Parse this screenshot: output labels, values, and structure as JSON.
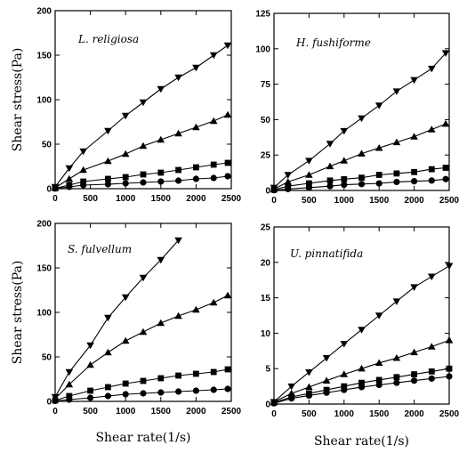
{
  "chart_data": [
    {
      "type": "line",
      "title": "L. religiosa",
      "xlabel": "",
      "ylabel": "Shear stress(Pa)",
      "xlim": [
        0,
        2500
      ],
      "ylim": [
        0,
        200
      ],
      "xticks": [
        0,
        500,
        1000,
        1500,
        2000,
        2500
      ],
      "yticks": [
        0,
        50,
        100,
        150,
        200
      ],
      "series": [
        {
          "marker": "triangle-down",
          "x": [
            0,
            200,
            400,
            750,
            1000,
            1250,
            1500,
            1750,
            2000,
            2250,
            2450
          ],
          "y": [
            2,
            23,
            42,
            65,
            82,
            97,
            112,
            125,
            136,
            150,
            161
          ]
        },
        {
          "marker": "triangle-up",
          "x": [
            0,
            200,
            400,
            750,
            1000,
            1250,
            1500,
            1750,
            2000,
            2250,
            2450
          ],
          "y": [
            1,
            11,
            21,
            31,
            39,
            48,
            55,
            62,
            69,
            76,
            83
          ]
        },
        {
          "marker": "square",
          "x": [
            0,
            200,
            400,
            750,
            1000,
            1250,
            1500,
            1750,
            2000,
            2250,
            2450
          ],
          "y": [
            0.5,
            4,
            8,
            11,
            13,
            16,
            18,
            21,
            24,
            27,
            29
          ]
        },
        {
          "marker": "circle",
          "x": [
            0,
            200,
            400,
            750,
            1000,
            1250,
            1500,
            1750,
            2000,
            2250,
            2450
          ],
          "y": [
            0.2,
            2,
            4,
            5,
            6,
            7,
            8,
            9,
            11,
            12,
            14
          ]
        }
      ]
    },
    {
      "type": "line",
      "title": "H. fushiforme",
      "xlabel": "",
      "ylabel": "",
      "xlim": [
        0,
        2500
      ],
      "ylim": [
        0,
        125
      ],
      "xticks": [
        0,
        500,
        1000,
        1500,
        2000,
        2500
      ],
      "yticks": [
        0,
        25,
        50,
        75,
        100,
        125
      ],
      "series": [
        {
          "marker": "triangle-down",
          "x": [
            0,
            200,
            500,
            800,
            1000,
            1250,
            1500,
            1750,
            2000,
            2250,
            2450
          ],
          "y": [
            2,
            11,
            21,
            33,
            42,
            51,
            60,
            70,
            78,
            86,
            97
          ]
        },
        {
          "marker": "triangle-up",
          "x": [
            0,
            200,
            500,
            800,
            1000,
            1250,
            1500,
            1750,
            2000,
            2250,
            2450
          ],
          "y": [
            1,
            6,
            11,
            17,
            21,
            26,
            30,
            34,
            38,
            43,
            47
          ]
        },
        {
          "marker": "square",
          "x": [
            0,
            200,
            500,
            800,
            1000,
            1250,
            1500,
            1750,
            2000,
            2250,
            2450
          ],
          "y": [
            0.5,
            3,
            5,
            7,
            8,
            9,
            11,
            12,
            13,
            15,
            16
          ]
        },
        {
          "marker": "circle",
          "x": [
            0,
            200,
            500,
            800,
            1000,
            1250,
            1500,
            1750,
            2000,
            2250,
            2450
          ],
          "y": [
            0.2,
            1,
            2,
            3,
            4,
            4.5,
            5,
            6,
            6.5,
            7,
            8
          ]
        }
      ]
    },
    {
      "type": "line",
      "title": "S. fulvellum",
      "xlabel": "Shear rate(1/s)",
      "ylabel": "Shear stress(Pa)",
      "xlim": [
        0,
        2500
      ],
      "ylim": [
        0,
        200
      ],
      "xticks": [
        0,
        500,
        1000,
        1500,
        2000,
        2500
      ],
      "yticks": [
        0,
        50,
        100,
        150,
        200
      ],
      "series": [
        {
          "marker": "triangle-down",
          "x": [
            0,
            200,
            500,
            750,
            1000,
            1250,
            1500,
            1750
          ],
          "y": [
            5,
            33,
            63,
            94,
            117,
            139,
            159,
            181
          ]
        },
        {
          "marker": "triangle-up",
          "x": [
            0,
            200,
            500,
            750,
            1000,
            1250,
            1500,
            1750,
            2000,
            2250,
            2450
          ],
          "y": [
            3,
            19,
            41,
            55,
            68,
            78,
            88,
            96,
            103,
            111,
            119
          ]
        },
        {
          "marker": "square",
          "x": [
            0,
            200,
            500,
            750,
            1000,
            1250,
            1500,
            1750,
            2000,
            2250,
            2450
          ],
          "y": [
            1,
            6,
            12,
            16,
            20,
            23,
            26,
            29,
            31,
            33,
            36
          ]
        },
        {
          "marker": "circle",
          "x": [
            0,
            200,
            500,
            750,
            1000,
            1250,
            1500,
            1750,
            2000,
            2250,
            2450
          ],
          "y": [
            0.5,
            2,
            4,
            6,
            8,
            9,
            10,
            11,
            12,
            13,
            14
          ]
        }
      ]
    },
    {
      "type": "line",
      "title": "U. pinnatifida",
      "xlabel": "Shear rate(1/s)",
      "ylabel": "",
      "xlim": [
        0,
        2500
      ],
      "ylim": [
        0,
        25
      ],
      "xticks": [
        0,
        500,
        1000,
        1500,
        2000,
        2500
      ],
      "yticks": [
        0,
        5,
        10,
        15,
        20,
        25
      ],
      "series": [
        {
          "marker": "triangle-down",
          "x": [
            0,
            250,
            500,
            750,
            1000,
            1250,
            1500,
            1750,
            2000,
            2250,
            2500
          ],
          "y": [
            0.3,
            2.5,
            4.5,
            6.5,
            8.5,
            10.5,
            12.5,
            14.5,
            16.5,
            18,
            19.5
          ]
        },
        {
          "marker": "triangle-up",
          "x": [
            0,
            250,
            500,
            750,
            1000,
            1250,
            1500,
            1750,
            2000,
            2250,
            2500
          ],
          "y": [
            0.3,
            1.5,
            2.4,
            3.3,
            4.2,
            5,
            5.8,
            6.5,
            7.3,
            8.1,
            9
          ]
        },
        {
          "marker": "square",
          "x": [
            0,
            250,
            500,
            750,
            1000,
            1250,
            1500,
            1750,
            2000,
            2250,
            2500
          ],
          "y": [
            0.2,
            1,
            1.5,
            2,
            2.5,
            3,
            3.4,
            3.8,
            4.2,
            4.6,
            5
          ]
        },
        {
          "marker": "circle",
          "x": [
            0,
            250,
            500,
            750,
            1000,
            1250,
            1500,
            1750,
            2000,
            2250,
            2500
          ],
          "y": [
            0.1,
            0.8,
            1.2,
            1.6,
            2,
            2.4,
            2.7,
            3,
            3.3,
            3.6,
            3.9
          ]
        }
      ]
    }
  ]
}
